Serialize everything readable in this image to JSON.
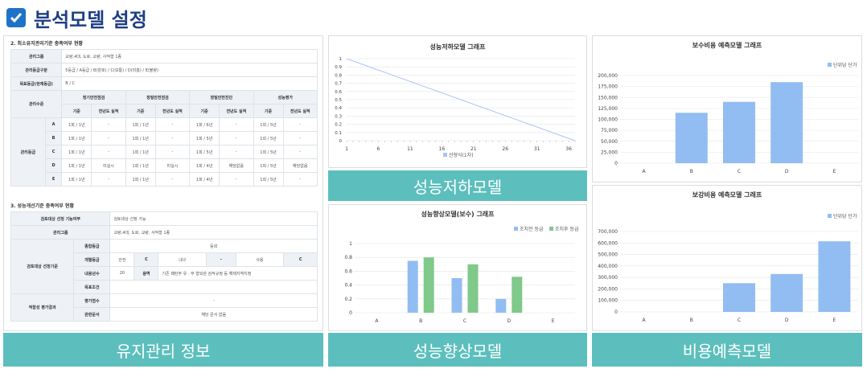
{
  "title": "분석모델 설정",
  "left": {
    "sec1": "2. 최소유지관리기준 충족여부 현황",
    "t1": {
      "r1": [
        "관리그룹",
        "교량,4대, 도로, 교량, 사적형 1종"
      ],
      "r2": [
        "관리등급구분",
        "5등급 / A등급 / B(양호) / C(보통) / D(미흡) / E(불량)"
      ],
      "r3": [
        "목표등급(현재등급)",
        "B / C"
      ],
      "head1": [
        "관리수준",
        "정기안전점검",
        "정밀안전점검",
        "정밀안전진단",
        "성능평가"
      ],
      "head2": [
        "기준",
        "전년도 실적",
        "기준",
        "전년도 실적",
        "기준",
        "전년도 실적",
        "기준",
        "전년도 실적"
      ],
      "rowlabel": "관리등급",
      "rows": [
        [
          "A",
          "1회 / 1년",
          "-",
          "1회 / 1년",
          "-",
          "1회 / 6년",
          "-",
          "1회 / 5년",
          "-"
        ],
        [
          "B",
          "1회 / 1년",
          "-",
          "1회 / 1년",
          "-",
          "1회 / 5년",
          "-",
          "1회 / 5년",
          "-"
        ],
        [
          "C",
          "1회 / 1년",
          "-",
          "1회 / 1년",
          "-",
          "1회 / 5년",
          "-",
          "1회 / 5년",
          "-"
        ],
        [
          "D",
          "1회 / 1년",
          "미실시",
          "1회 / 1년",
          "미실시",
          "1회 / 4년",
          "해당없음",
          "1회 / 5년",
          "해당없음"
        ],
        [
          "E",
          "1회 / 1년",
          "-",
          "1회 / 1년",
          "-",
          "1회 / 4년",
          "-",
          "1회 / 5년",
          "-"
        ]
      ]
    },
    "sec2": "3. 성능개선기준 충족여부 현황",
    "t2": {
      "r1": [
        "검토대상 선정 기능여부",
        "검토대상 선정 가능"
      ],
      "r2": [
        "관리그룹",
        "교량,4대, 도로, 교량, 사적형 1종"
      ],
      "grp": "검토대상 선정기준",
      "r3": [
        "종합등급",
        "등외"
      ],
      "r4": [
        "개별등급",
        "안전",
        "C",
        "내구",
        "-",
        "사용",
        "C"
      ],
      "r5": [
        "내용년수",
        "20",
        "용역",
        "기존 패턴부 유 · 무 형외관 검적규정 등 해제지역지정"
      ],
      "r6": [
        "목표조건",
        ""
      ],
      "grp2": "적합성 평가결과",
      "r7": [
        "평가점수",
        "-"
      ],
      "r8": [
        "관련문서",
        "해당 문서 없음"
      ]
    }
  },
  "banners": {
    "b1": "유지관리 정보",
    "b2": "성능저하모델",
    "b3": "성능향상모델",
    "b4": "비용예측모델"
  },
  "chart_data": [
    {
      "type": "line",
      "title": "성능저하모델 그래프",
      "xlabel": "",
      "ylabel": "",
      "x": [
        1,
        37
      ],
      "series": [
        {
          "name": "선형식(1차)",
          "values": [
            1,
            0
          ]
        }
      ],
      "xticks": [
        1,
        6,
        11,
        16,
        21,
        26,
        31,
        36
      ],
      "ylim": [
        0,
        1
      ],
      "yticks": [
        0,
        0.1,
        0.2,
        0.3,
        0.4,
        0.5,
        0.6,
        0.7,
        0.8,
        0.9,
        1
      ],
      "color": "#a9c4f5"
    },
    {
      "type": "bar",
      "title": "성능향상모델(보수) 그래프",
      "categories": [
        "A",
        "B",
        "C",
        "D",
        "E"
      ],
      "series": [
        {
          "name": "조치전 등급",
          "values": [
            0,
            0.75,
            0.5,
            0.2,
            0
          ],
          "color": "#92bdf2"
        },
        {
          "name": "조치후 등급",
          "values": [
            0,
            0.8,
            0.7,
            0.52,
            0
          ],
          "color": "#7fc98a"
        }
      ],
      "ylim": [
        0,
        1
      ],
      "yticks": [
        0,
        0.2,
        0.4,
        0.6,
        0.8,
        1
      ]
    },
    {
      "type": "bar",
      "title": "보수비용 예측모델 그래프",
      "categories": [
        "A",
        "B",
        "C",
        "D",
        "E"
      ],
      "series": [
        {
          "name": "단위당 단가",
          "values": [
            0,
            115000,
            140000,
            185000,
            0
          ],
          "color": "#92bdf2"
        }
      ],
      "ylim": [
        0,
        200000
      ],
      "yticks": [
        0,
        25000,
        50000,
        75000,
        100000,
        125000,
        150000,
        175000,
        200000
      ]
    },
    {
      "type": "bar",
      "title": "보강비용 예측모델 그래프",
      "categories": [
        "A",
        "B",
        "C",
        "D",
        "E"
      ],
      "series": [
        {
          "name": "단위당 단가",
          "values": [
            0,
            0,
            250000,
            330000,
            615000
          ],
          "color": "#92bdf2"
        }
      ],
      "ylim": [
        0,
        700000
      ],
      "yticks": [
        0,
        100000,
        200000,
        300000,
        400000,
        500000,
        600000,
        700000
      ]
    }
  ]
}
